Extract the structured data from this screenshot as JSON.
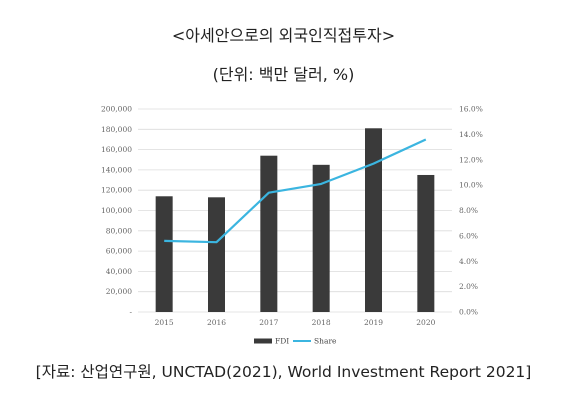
{
  "title": "<아세안으로의 외국인직접투자>",
  "subtitle": "(단위: 백만 달러, %)",
  "source": "[자료: 산업연구원, UNCTAD(2021), World Investment Report 2021]",
  "chart_data": {
    "type": "bar",
    "categories": [
      "2015",
      "2016",
      "2017",
      "2018",
      "2019",
      "2020"
    ],
    "series": [
      {
        "name": "FDI",
        "kind": "bar",
        "axis": "left",
        "color": "#3a3a3a",
        "values": [
          114000,
          113000,
          154000,
          145000,
          181000,
          135000
        ]
      },
      {
        "name": "Share",
        "kind": "line",
        "axis": "right",
        "color": "#3bb5e0",
        "values": [
          5.6,
          5.5,
          9.4,
          10.1,
          11.7,
          13.6
        ]
      }
    ],
    "y_left": {
      "min": 0,
      "max": 200000,
      "step": 20000,
      "ticks": [
        "-",
        "20,000",
        "40,000",
        "60,000",
        "80,000",
        "100,000",
        "120,000",
        "140,000",
        "160,000",
        "180,000",
        "200,000"
      ]
    },
    "y_right": {
      "min": 0,
      "max": 16,
      "step": 2,
      "ticks": [
        "0.0%",
        "2.0%",
        "4.0%",
        "6.0%",
        "8.0%",
        "10.0%",
        "12.0%",
        "14.0%",
        "16.0%"
      ]
    },
    "grid": true,
    "legend_position": "bottom"
  }
}
